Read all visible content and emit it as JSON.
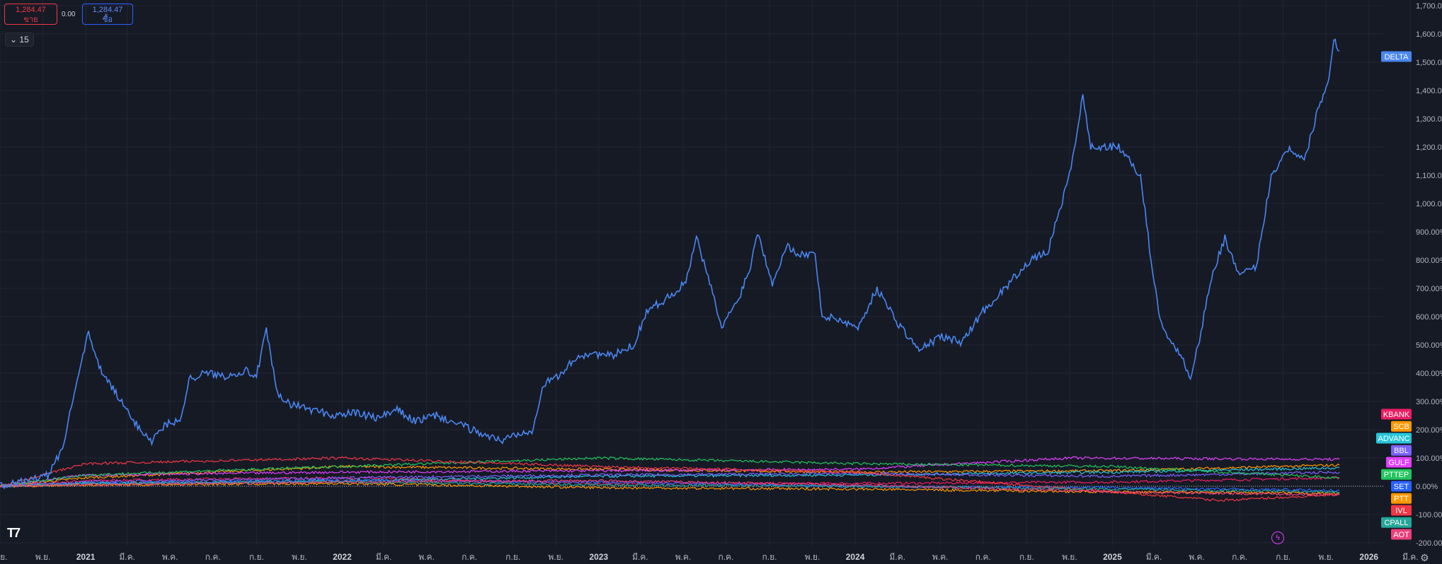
{
  "toolbar": {
    "sell": {
      "price": "1,284.47",
      "label": "ขาย"
    },
    "buy": {
      "price": "1,284.47",
      "label": "ซื้อ"
    },
    "spread": "0.00",
    "interval": "15",
    "interval_icon": "chevron-down-icon"
  },
  "icons": {
    "logo": "tradingview-logo",
    "alert": "lightning-icon",
    "settings": "gear-icon"
  },
  "chart_data": {
    "type": "line",
    "y_unit": "%",
    "ylim": [
      -200,
      1700
    ],
    "y_ticks": [
      "1,700.00%",
      "1,600.00%",
      "1,500.00%",
      "1,400.00%",
      "1,300.00%",
      "1,200.00%",
      "1,100.00%",
      "1,000.00%",
      "900.00%",
      "800.00%",
      "700.00%",
      "600.00%",
      "500.00%",
      "400.00%",
      "300.00%",
      "200.00%",
      "100.00%",
      "0.00%",
      "-100.00%",
      "-200.00%"
    ],
    "x_range": [
      "2020-09-01",
      "2026-04-15"
    ],
    "x_ticks": [
      {
        "label": "ก.ย.",
        "date": "2020-09-01"
      },
      {
        "label": "พ.ย.",
        "date": "2020-11-01"
      },
      {
        "label": "2021",
        "date": "2021-01-01",
        "year": true
      },
      {
        "label": "มี.ค.",
        "date": "2021-03-01"
      },
      {
        "label": "พ.ค.",
        "date": "2021-05-01"
      },
      {
        "label": "ก.ค.",
        "date": "2021-07-01"
      },
      {
        "label": "ก.ย.",
        "date": "2021-09-01"
      },
      {
        "label": "พ.ย.",
        "date": "2021-11-01"
      },
      {
        "label": "2022",
        "date": "2022-01-01",
        "year": true
      },
      {
        "label": "มี.ค.",
        "date": "2022-03-01"
      },
      {
        "label": "พ.ค.",
        "date": "2022-05-01"
      },
      {
        "label": "ก.ค.",
        "date": "2022-07-01"
      },
      {
        "label": "ก.ย.",
        "date": "2022-09-01"
      },
      {
        "label": "พ.ย.",
        "date": "2022-11-01"
      },
      {
        "label": "2023",
        "date": "2023-01-01",
        "year": true
      },
      {
        "label": "มี.ค.",
        "date": "2023-03-01"
      },
      {
        "label": "พ.ค.",
        "date": "2023-05-01"
      },
      {
        "label": "ก.ค.",
        "date": "2023-07-01"
      },
      {
        "label": "ก.ย.",
        "date": "2023-09-01"
      },
      {
        "label": "พ.ย.",
        "date": "2023-11-01"
      },
      {
        "label": "2024",
        "date": "2024-01-01",
        "year": true
      },
      {
        "label": "มี.ค.",
        "date": "2024-03-01"
      },
      {
        "label": "พ.ค.",
        "date": "2024-05-01"
      },
      {
        "label": "ก.ค.",
        "date": "2024-07-01"
      },
      {
        "label": "ก.ย.",
        "date": "2024-09-01"
      },
      {
        "label": "พ.ย.",
        "date": "2024-11-01"
      },
      {
        "label": "2025",
        "date": "2025-01-01",
        "year": true
      },
      {
        "label": "มี.ค.",
        "date": "2025-03-01"
      },
      {
        "label": "พ.ค.",
        "date": "2025-05-01"
      },
      {
        "label": "ก.ค.",
        "date": "2025-07-01"
      },
      {
        "label": "ก.ย.",
        "date": "2025-09-01"
      },
      {
        "label": "พ.ย.",
        "date": "2025-11-01"
      },
      {
        "label": "2026",
        "date": "2026-01-01",
        "year": true
      },
      {
        "label": "มี.ค.",
        "date": "2026-03-01"
      }
    ],
    "series": [
      {
        "name": "DELTA",
        "color": "#4a86f0",
        "label_value": 1520,
        "points": [
          [
            "2020-09-01",
            0
          ],
          [
            "2020-10-01",
            15
          ],
          [
            "2020-11-10",
            40
          ],
          [
            "2020-12-01",
            150
          ],
          [
            "2020-12-20",
            390
          ],
          [
            "2021-01-05",
            540
          ],
          [
            "2021-01-20",
            420
          ],
          [
            "2021-02-15",
            320
          ],
          [
            "2021-03-10",
            230
          ],
          [
            "2021-04-05",
            160
          ],
          [
            "2021-04-25",
            220
          ],
          [
            "2021-05-15",
            230
          ],
          [
            "2021-05-28",
            380
          ],
          [
            "2021-06-20",
            400
          ],
          [
            "2021-07-20",
            390
          ],
          [
            "2021-08-15",
            410
          ],
          [
            "2021-09-01",
            390
          ],
          [
            "2021-09-15",
            550
          ],
          [
            "2021-10-01",
            320
          ],
          [
            "2021-10-20",
            290
          ],
          [
            "2021-11-20",
            270
          ],
          [
            "2021-12-20",
            250
          ],
          [
            "2022-01-20",
            260
          ],
          [
            "2022-02-20",
            240
          ],
          [
            "2022-03-20",
            270
          ],
          [
            "2022-04-15",
            230
          ],
          [
            "2022-05-15",
            250
          ],
          [
            "2022-06-15",
            220
          ],
          [
            "2022-07-15",
            190
          ],
          [
            "2022-08-15",
            160
          ],
          [
            "2022-09-10",
            190
          ],
          [
            "2022-09-28",
            200
          ],
          [
            "2022-10-15",
            360
          ],
          [
            "2022-11-10",
            400
          ],
          [
            "2022-12-01",
            460
          ],
          [
            "2022-12-25",
            470
          ],
          [
            "2023-01-20",
            460
          ],
          [
            "2023-02-20",
            500
          ],
          [
            "2023-03-10",
            620
          ],
          [
            "2023-04-05",
            660
          ],
          [
            "2023-05-05",
            720
          ],
          [
            "2023-05-20",
            880
          ],
          [
            "2023-06-10",
            700
          ],
          [
            "2023-06-25",
            560
          ],
          [
            "2023-07-20",
            670
          ],
          [
            "2023-08-05",
            780
          ],
          [
            "2023-08-15",
            900
          ],
          [
            "2023-09-05",
            720
          ],
          [
            "2023-09-25",
            850
          ],
          [
            "2023-10-15",
            820
          ],
          [
            "2023-11-05",
            820
          ],
          [
            "2023-11-15",
            600
          ],
          [
            "2023-12-10",
            590
          ],
          [
            "2024-01-05",
            560
          ],
          [
            "2024-02-01",
            700
          ],
          [
            "2024-03-01",
            580
          ],
          [
            "2024-04-01",
            480
          ],
          [
            "2024-05-01",
            530
          ],
          [
            "2024-06-01",
            510
          ],
          [
            "2024-07-01",
            620
          ],
          [
            "2024-08-01",
            700
          ],
          [
            "2024-09-01",
            790
          ],
          [
            "2024-10-01",
            830
          ],
          [
            "2024-11-01",
            1100
          ],
          [
            "2024-11-20",
            1380
          ],
          [
            "2024-12-01",
            1200
          ],
          [
            "2025-01-10",
            1200
          ],
          [
            "2025-02-10",
            1100
          ],
          [
            "2025-02-25",
            800
          ],
          [
            "2025-03-10",
            580
          ],
          [
            "2025-04-10",
            450
          ],
          [
            "2025-04-22",
            390
          ],
          [
            "2025-05-05",
            520
          ],
          [
            "2025-05-20",
            720
          ],
          [
            "2025-06-10",
            880
          ],
          [
            "2025-07-01",
            740
          ],
          [
            "2025-07-25",
            780
          ],
          [
            "2025-08-15",
            1100
          ],
          [
            "2025-09-10",
            1200
          ],
          [
            "2025-10-01",
            1150
          ],
          [
            "2025-10-20",
            1330
          ],
          [
            "2025-11-05",
            1440
          ],
          [
            "2025-11-12",
            1590
          ],
          [
            "2025-11-20",
            1540
          ]
        ]
      },
      {
        "name": "KBANK",
        "color": "#e91e63",
        "label_value": 255,
        "points": [
          [
            "2020-09-01",
            0
          ],
          [
            "2021-01-01",
            20
          ],
          [
            "2022-01-01",
            30
          ],
          [
            "2023-01-01",
            10
          ],
          [
            "2024-01-01",
            10
          ],
          [
            "2025-01-01",
            15
          ],
          [
            "2025-11-20",
            30
          ]
        ]
      },
      {
        "name": "SCB",
        "color": "#ff9800",
        "label_value": 212,
        "points": [
          [
            "2020-09-01",
            0
          ],
          [
            "2021-01-01",
            30
          ],
          [
            "2022-01-01",
            70
          ],
          [
            "2023-01-01",
            60
          ],
          [
            "2024-01-01",
            50
          ],
          [
            "2025-01-01",
            55
          ],
          [
            "2025-11-20",
            75
          ]
        ]
      },
      {
        "name": "ADVANC",
        "color": "#26c6da",
        "label_value": 170,
        "points": [
          [
            "2020-09-01",
            0
          ],
          [
            "2021-01-01",
            10
          ],
          [
            "2022-01-01",
            20
          ],
          [
            "2023-01-01",
            35
          ],
          [
            "2024-01-01",
            40
          ],
          [
            "2025-01-01",
            50
          ],
          [
            "2025-11-20",
            65
          ]
        ]
      },
      {
        "name": "BBL",
        "color": "#7b61ff",
        "label_value": 127,
        "points": [
          [
            "2020-09-01",
            0
          ],
          [
            "2021-01-01",
            15
          ],
          [
            "2022-01-01",
            30
          ],
          [
            "2023-01-01",
            40
          ],
          [
            "2024-01-01",
            45
          ],
          [
            "2025-01-01",
            35
          ],
          [
            "2025-11-20",
            50
          ]
        ]
      },
      {
        "name": "GULF",
        "color": "#e040fb",
        "label_value": 85,
        "points": [
          [
            "2020-09-01",
            0
          ],
          [
            "2021-01-01",
            40
          ],
          [
            "2022-01-01",
            50
          ],
          [
            "2023-01-01",
            55
          ],
          [
            "2024-01-01",
            60
          ],
          [
            "2024-11-01",
            100
          ],
          [
            "2025-11-20",
            95
          ]
        ]
      },
      {
        "name": "PTTEP",
        "color": "#22c55e",
        "label_value": 42,
        "points": [
          [
            "2020-09-01",
            0
          ],
          [
            "2021-01-01",
            40
          ],
          [
            "2022-01-01",
            70
          ],
          [
            "2023-01-01",
            100
          ],
          [
            "2024-01-01",
            80
          ],
          [
            "2025-01-01",
            70
          ],
          [
            "2025-11-20",
            30
          ]
        ]
      },
      {
        "name": "SET",
        "color": "#2962ff",
        "label_value": 0,
        "points": [
          [
            "2020-09-01",
            0
          ],
          [
            "2021-01-01",
            10
          ],
          [
            "2022-01-01",
            20
          ],
          [
            "2023-01-01",
            15
          ],
          [
            "2024-01-01",
            0
          ],
          [
            "2025-01-01",
            -5
          ],
          [
            "2025-11-20",
            -15
          ]
        ]
      },
      {
        "name": "PTT",
        "color": "#ff9800",
        "label_value": -43,
        "points": [
          [
            "2020-09-01",
            0
          ],
          [
            "2021-01-01",
            5
          ],
          [
            "2022-01-01",
            10
          ],
          [
            "2023-01-01",
            -5
          ],
          [
            "2024-01-01",
            -10
          ],
          [
            "2025-01-01",
            -20
          ],
          [
            "2025-11-20",
            -25
          ]
        ]
      },
      {
        "name": "IVL",
        "color": "#f23645",
        "label_value": -85,
        "points": [
          [
            "2020-09-01",
            0
          ],
          [
            "2021-01-01",
            80
          ],
          [
            "2022-01-01",
            100
          ],
          [
            "2023-01-01",
            70
          ],
          [
            "2024-01-01",
            50
          ],
          [
            "2025-01-01",
            -20
          ],
          [
            "2025-06-01",
            -50
          ],
          [
            "2025-11-20",
            -30
          ]
        ]
      },
      {
        "name": "CPALL",
        "color": "#26a69a",
        "label_value": -128,
        "points": [
          [
            "2020-09-01",
            0
          ],
          [
            "2021-01-01",
            10
          ],
          [
            "2022-01-01",
            15
          ],
          [
            "2023-01-01",
            5
          ],
          [
            "2024-01-01",
            0
          ],
          [
            "2025-01-01",
            -10
          ],
          [
            "2025-11-20",
            -20
          ]
        ]
      },
      {
        "name": "AOT",
        "color": "#ec407a",
        "label_value": -170,
        "points": [
          [
            "2020-09-01",
            0
          ],
          [
            "2021-01-01",
            5
          ],
          [
            "2022-01-01",
            15
          ],
          [
            "2023-01-01",
            20
          ],
          [
            "2024-01-01",
            5
          ],
          [
            "2025-01-01",
            -20
          ],
          [
            "2025-11-20",
            -30
          ]
        ]
      }
    ]
  }
}
